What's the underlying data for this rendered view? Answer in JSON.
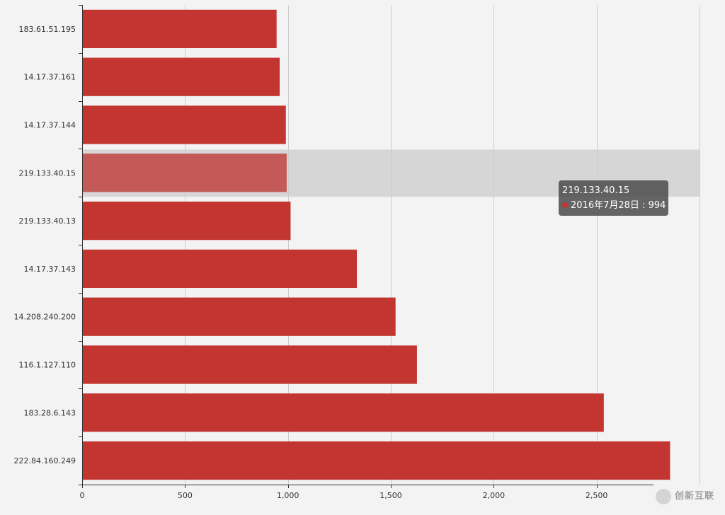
{
  "chart_data": {
    "type": "bar",
    "orientation": "horizontal",
    "categories": [
      "183.61.51.195",
      "14.17.37.161",
      "14.17.37.144",
      "219.133.40.15",
      "219.133.40.13",
      "14.17.37.143",
      "14.208.240.200",
      "116.1.127.110",
      "183.28.6.143",
      "222.84.160.249"
    ],
    "series": [
      {
        "name": "2016年7月28日",
        "values": [
          945,
          960,
          990,
          994,
          1013,
          1335,
          1523,
          1627,
          2535,
          2857
        ]
      }
    ],
    "xlim": [
      0,
      3000
    ],
    "x_ticks": [
      "0",
      "500",
      "1,000",
      "1,500",
      "2,000",
      "2,500"
    ],
    "grid": true,
    "highlighted_category": "219.133.40.15"
  },
  "tooltip": {
    "title": "219.133.40.15",
    "series_label": "2016年7月28日",
    "separator": " : ",
    "value": "994"
  },
  "watermark": {
    "text": "创新互联"
  },
  "colors": {
    "bar": "#c23531",
    "bar_highlight": "#c35a57",
    "highlight_band": "#d6d6d6",
    "grid": "#cccccc",
    "axis": "#333333",
    "background": "#f3f3f3"
  }
}
